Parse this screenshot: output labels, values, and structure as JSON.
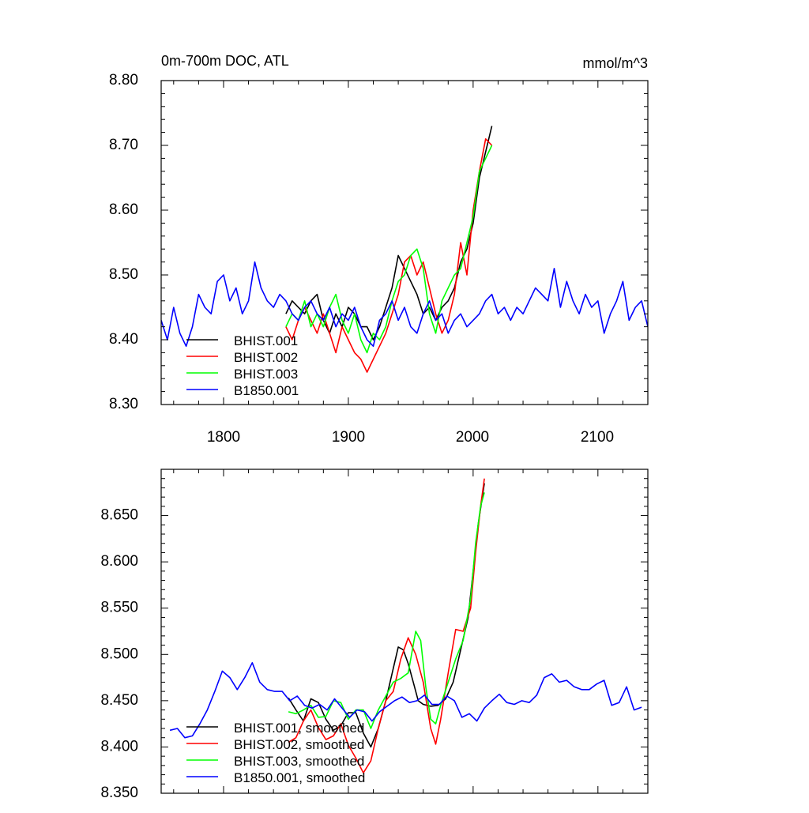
{
  "chart_data": [
    {
      "type": "line",
      "title": "0m-700m DOC, ATL",
      "units": "mmol/m^3",
      "xlim": [
        1750,
        2140
      ],
      "ylim": [
        8.3,
        8.8
      ],
      "xticks": [
        1800,
        1900,
        2000,
        2100
      ],
      "xtick_labels": [
        "1800",
        "1900",
        "2000",
        "2100"
      ],
      "yticks": [
        8.3,
        8.4,
        8.5,
        8.6,
        8.7,
        8.8
      ],
      "ytick_labels": [
        "8.30",
        "8.40",
        "8.50",
        "8.60",
        "8.70",
        "8.80"
      ],
      "legend_position": "bottom-left",
      "grid": false,
      "series": [
        {
          "name": "BHIST.001",
          "color": "#000000",
          "x": [
            1850,
            1855,
            1860,
            1865,
            1870,
            1875,
            1880,
            1885,
            1890,
            1895,
            1900,
            1905,
            1910,
            1915,
            1920,
            1925,
            1930,
            1935,
            1940,
            1945,
            1950,
            1955,
            1960,
            1965,
            1970,
            1975,
            1980,
            1985,
            1990,
            1995,
            2000,
            2005,
            2010,
            2015
          ],
          "y": [
            8.44,
            8.46,
            8.45,
            8.44,
            8.46,
            8.47,
            8.43,
            8.41,
            8.44,
            8.42,
            8.45,
            8.44,
            8.42,
            8.42,
            8.4,
            8.42,
            8.45,
            8.48,
            8.53,
            8.51,
            8.49,
            8.47,
            8.44,
            8.45,
            8.43,
            8.45,
            8.46,
            8.48,
            8.52,
            8.54,
            8.58,
            8.65,
            8.69,
            8.73
          ]
        },
        {
          "name": "BHIST.002",
          "color": "#ff0000",
          "x": [
            1850,
            1855,
            1860,
            1865,
            1870,
            1875,
            1880,
            1885,
            1890,
            1895,
            1900,
            1905,
            1910,
            1915,
            1920,
            1925,
            1930,
            1935,
            1940,
            1945,
            1950,
            1955,
            1960,
            1965,
            1970,
            1975,
            1980,
            1985,
            1990,
            1995,
            2000,
            2005,
            2010,
            2015
          ],
          "y": [
            8.42,
            8.4,
            8.43,
            8.45,
            8.43,
            8.41,
            8.44,
            8.41,
            8.38,
            8.42,
            8.4,
            8.38,
            8.37,
            8.35,
            8.37,
            8.39,
            8.41,
            8.44,
            8.47,
            8.52,
            8.53,
            8.5,
            8.52,
            8.48,
            8.44,
            8.41,
            8.43,
            8.47,
            8.55,
            8.5,
            8.6,
            8.66,
            8.71,
            8.7
          ]
        },
        {
          "name": "BHIST.003",
          "color": "#00ff00",
          "x": [
            1850,
            1855,
            1860,
            1865,
            1870,
            1875,
            1880,
            1885,
            1890,
            1895,
            1900,
            1905,
            1910,
            1915,
            1920,
            1925,
            1930,
            1935,
            1940,
            1945,
            1950,
            1955,
            1960,
            1965,
            1970,
            1975,
            1980,
            1985,
            1990,
            1995,
            2000,
            2005,
            2010,
            2015
          ],
          "y": [
            8.42,
            8.44,
            8.43,
            8.46,
            8.42,
            8.44,
            8.42,
            8.45,
            8.47,
            8.43,
            8.41,
            8.44,
            8.4,
            8.38,
            8.41,
            8.4,
            8.42,
            8.46,
            8.49,
            8.5,
            8.53,
            8.54,
            8.51,
            8.44,
            8.41,
            8.46,
            8.48,
            8.5,
            8.51,
            8.55,
            8.59,
            8.66,
            8.68,
            8.7
          ]
        },
        {
          "name": "B1850.001",
          "color": "#0000ff",
          "x": [
            1750,
            1755,
            1760,
            1765,
            1770,
            1775,
            1780,
            1785,
            1790,
            1795,
            1800,
            1805,
            1810,
            1815,
            1820,
            1825,
            1830,
            1835,
            1840,
            1845,
            1850,
            1855,
            1860,
            1865,
            1870,
            1875,
            1880,
            1885,
            1890,
            1895,
            1900,
            1905,
            1910,
            1915,
            1920,
            1925,
            1930,
            1935,
            1940,
            1945,
            1950,
            1955,
            1960,
            1965,
            1970,
            1975,
            1980,
            1985,
            1990,
            1995,
            2000,
            2005,
            2010,
            2015,
            2020,
            2025,
            2030,
            2035,
            2040,
            2045,
            2050,
            2055,
            2060,
            2065,
            2070,
            2075,
            2080,
            2085,
            2090,
            2095,
            2100,
            2105,
            2110,
            2115,
            2120,
            2125,
            2130,
            2135,
            2140
          ],
          "y": [
            8.43,
            8.4,
            8.45,
            8.41,
            8.39,
            8.42,
            8.47,
            8.45,
            8.44,
            8.49,
            8.5,
            8.46,
            8.48,
            8.44,
            8.46,
            8.52,
            8.48,
            8.46,
            8.45,
            8.47,
            8.46,
            8.44,
            8.43,
            8.45,
            8.46,
            8.44,
            8.43,
            8.45,
            8.42,
            8.44,
            8.43,
            8.45,
            8.42,
            8.4,
            8.39,
            8.43,
            8.44,
            8.46,
            8.43,
            8.45,
            8.42,
            8.41,
            8.44,
            8.46,
            8.43,
            8.44,
            8.41,
            8.43,
            8.44,
            8.42,
            8.43,
            8.44,
            8.46,
            8.47,
            8.44,
            8.45,
            8.43,
            8.45,
            8.44,
            8.46,
            8.48,
            8.47,
            8.46,
            8.51,
            8.45,
            8.49,
            8.46,
            8.44,
            8.47,
            8.45,
            8.46,
            8.41,
            8.44,
            8.46,
            8.49,
            8.43,
            8.45,
            8.46,
            8.42
          ]
        }
      ]
    },
    {
      "type": "line",
      "xlim": [
        1750,
        2140
      ],
      "ylim": [
        8.35,
        8.7
      ],
      "yticks": [
        8.35,
        8.4,
        8.45,
        8.5,
        8.55,
        8.6,
        8.65
      ],
      "ytick_labels": [
        "8.350",
        "8.400",
        "8.450",
        "8.500",
        "8.550",
        "8.600",
        "8.650"
      ],
      "legend_position": "bottom-left",
      "grid": false,
      "series": [
        {
          "name": "BHIST.001, smoothed",
          "color": "#000000",
          "x": [
            1852,
            1858,
            1864,
            1870,
            1876,
            1882,
            1888,
            1894,
            1900,
            1906,
            1912,
            1918,
            1924,
            1930,
            1936,
            1940,
            1944,
            1948,
            1952,
            1956,
            1960,
            1966,
            1972,
            1978,
            1984,
            1990,
            1996,
            2000,
            2004,
            2009
          ],
          "y": [
            8.453,
            8.44,
            8.428,
            8.452,
            8.448,
            8.43,
            8.418,
            8.423,
            8.437,
            8.437,
            8.415,
            8.4,
            8.42,
            8.45,
            8.485,
            8.508,
            8.505,
            8.49,
            8.47,
            8.45,
            8.446,
            8.444,
            8.445,
            8.452,
            8.47,
            8.505,
            8.54,
            8.59,
            8.64,
            8.685
          ]
        },
        {
          "name": "BHIST.002, smoothed",
          "color": "#ff0000",
          "x": [
            1852,
            1858,
            1864,
            1870,
            1876,
            1882,
            1888,
            1894,
            1900,
            1906,
            1912,
            1918,
            1924,
            1930,
            1936,
            1942,
            1948,
            1954,
            1960,
            1966,
            1970,
            1974,
            1980,
            1986,
            1992,
            1998,
            2002,
            2006,
            2009
          ],
          "y": [
            8.405,
            8.41,
            8.428,
            8.44,
            8.421,
            8.408,
            8.412,
            8.425,
            8.402,
            8.388,
            8.372,
            8.385,
            8.42,
            8.45,
            8.46,
            8.495,
            8.518,
            8.5,
            8.47,
            8.42,
            8.403,
            8.43,
            8.48,
            8.527,
            8.525,
            8.55,
            8.61,
            8.66,
            8.69
          ]
        },
        {
          "name": "BHIST.003, smoothed",
          "color": "#00ff00",
          "x": [
            1852,
            1858,
            1864,
            1870,
            1876,
            1882,
            1888,
            1894,
            1900,
            1906,
            1912,
            1918,
            1924,
            1930,
            1936,
            1942,
            1948,
            1954,
            1958,
            1962,
            1966,
            1970,
            1974,
            1980,
            1986,
            1992,
            1998,
            2002,
            2006,
            2009
          ],
          "y": [
            8.438,
            8.436,
            8.44,
            8.445,
            8.432,
            8.433,
            8.45,
            8.448,
            8.43,
            8.44,
            8.44,
            8.42,
            8.44,
            8.455,
            8.47,
            8.474,
            8.48,
            8.525,
            8.515,
            8.465,
            8.43,
            8.425,
            8.445,
            8.47,
            8.495,
            8.515,
            8.56,
            8.62,
            8.66,
            8.675
          ]
        },
        {
          "name": "B1850.001, smoothed",
          "color": "#0000ff",
          "x": [
            1757,
            1763,
            1769,
            1775,
            1781,
            1787,
            1793,
            1799,
            1805,
            1811,
            1817,
            1823,
            1829,
            1835,
            1841,
            1847,
            1853,
            1859,
            1865,
            1871,
            1877,
            1883,
            1889,
            1895,
            1901,
            1907,
            1913,
            1919,
            1925,
            1931,
            1937,
            1943,
            1949,
            1955,
            1961,
            1967,
            1973,
            1979,
            1985,
            1991,
            1997,
            2003,
            2009,
            2015,
            2021,
            2027,
            2033,
            2039,
            2045,
            2051,
            2057,
            2063,
            2069,
            2075,
            2081,
            2087,
            2093,
            2099,
            2105,
            2111,
            2117,
            2123,
            2129,
            2135
          ],
          "y": [
            8.418,
            8.42,
            8.41,
            8.412,
            8.425,
            8.44,
            8.46,
            8.482,
            8.475,
            8.462,
            8.475,
            8.491,
            8.47,
            8.462,
            8.46,
            8.46,
            8.45,
            8.455,
            8.445,
            8.442,
            8.446,
            8.44,
            8.452,
            8.442,
            8.432,
            8.44,
            8.438,
            8.428,
            8.438,
            8.444,
            8.45,
            8.454,
            8.448,
            8.45,
            8.456,
            8.446,
            8.446,
            8.455,
            8.45,
            8.432,
            8.436,
            8.428,
            8.442,
            8.45,
            8.457,
            8.448,
            8.446,
            8.45,
            8.448,
            8.456,
            8.475,
            8.479,
            8.47,
            8.472,
            8.465,
            8.462,
            8.462,
            8.468,
            8.472,
            8.445,
            8.448,
            8.465,
            8.44,
            8.443
          ]
        }
      ]
    }
  ]
}
